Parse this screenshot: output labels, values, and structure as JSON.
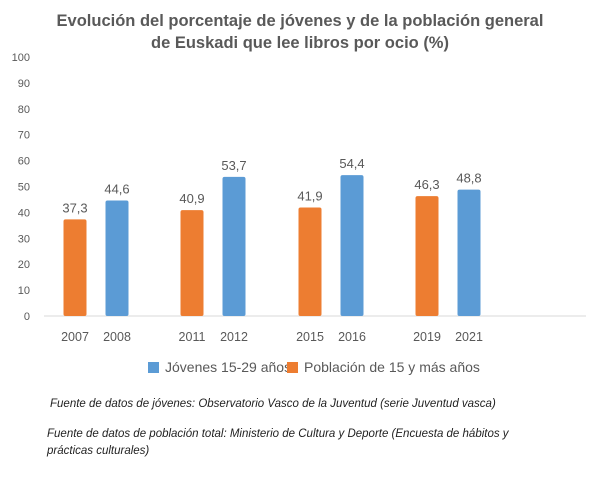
{
  "chart_data": {
    "type": "bar",
    "title": "Evolución del porcentaje de jóvenes y de la población general",
    "subtitle": "de Euskadi que lee libros por ocio (%)",
    "categories": [
      "2007",
      "2008",
      "2011",
      "2012",
      "2015",
      "2016",
      "2019",
      "2021"
    ],
    "series": [
      {
        "name": "Jóvenes 15-29 años",
        "color": "#5b9bd5",
        "values": [
          null,
          44.6,
          null,
          53.7,
          null,
          54.4,
          null,
          48.8
        ]
      },
      {
        "name": "Población de 15 y más años",
        "color": "#ed7d31",
        "values": [
          37.3,
          null,
          40.9,
          null,
          41.9,
          null,
          46.3,
          null
        ]
      }
    ],
    "data_labels": [
      "37,3",
      "44,6",
      "40,9",
      "53,7",
      "41,9",
      "54,4",
      "46,3",
      "48,8"
    ],
    "ylim": [
      0,
      100
    ],
    "yticks": [
      "0",
      "10",
      "20",
      "30",
      "40",
      "50",
      "60",
      "70",
      "80",
      "90",
      "100"
    ],
    "grid": false,
    "legend": "bottom"
  },
  "notes": [
    "Fuente de datos de jóvenes: Observatorio Vasco de la Juventud (serie Juventud vasca)",
    "Fuente de datos de población total: Ministerio de Cultura y Deporte (Encuesta de hábitos y prácticas culturales)"
  ]
}
